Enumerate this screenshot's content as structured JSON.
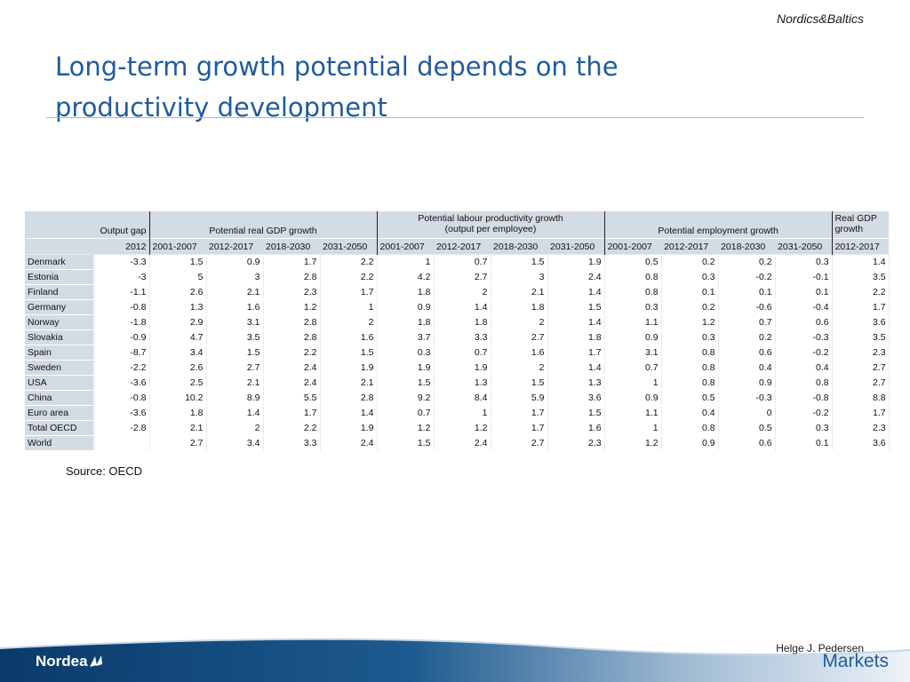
{
  "header": {
    "brand_tag": "Nordics&Baltics",
    "title_line1": "Long-term growth potential depends on the",
    "title_line2": "productivity development"
  },
  "table": {
    "group_headers": {
      "output_gap": "Output gap",
      "potential_gdp": "Potential real GDP growth",
      "labour_productivity_line1": "Potential labour productivity growth",
      "labour_productivity_line2": "(output per employee)",
      "employment": "Potential employment growth",
      "real_gdp_line1": "Real GDP",
      "real_gdp_line2": "growth"
    },
    "sub_headers": [
      "2012",
      "2001-2007",
      "2012-2017",
      "2018-2030",
      "2031-2050",
      "2001-2007",
      "2012-2017",
      "2018-2030",
      "2031-2050",
      "2001-2007",
      "2012-2017",
      "2018-2030",
      "2031-2050",
      "2012-2017"
    ],
    "rows": [
      {
        "country": "Denmark",
        "values": [
          "-3.3",
          "1.5",
          "0.9",
          "1.7",
          "2.2",
          "1",
          "0.7",
          "1.5",
          "1.9",
          "0.5",
          "0.2",
          "0.2",
          "0.3",
          "1.4"
        ]
      },
      {
        "country": "Estonia",
        "values": [
          "-3",
          "5",
          "3",
          "2.8",
          "2.2",
          "4.2",
          "2.7",
          "3",
          "2.4",
          "0.8",
          "0.3",
          "-0.2",
          "-0.1",
          "3.5"
        ]
      },
      {
        "country": "Finland",
        "values": [
          "-1.1",
          "2.6",
          "2.1",
          "2.3",
          "1.7",
          "1.8",
          "2",
          "2.1",
          "1.4",
          "0.8",
          "0.1",
          "0.1",
          "0.1",
          "2.2"
        ]
      },
      {
        "country": "Germany",
        "values": [
          "-0.8",
          "1.3",
          "1.6",
          "1.2",
          "1",
          "0.9",
          "1.4",
          "1.8",
          "1.5",
          "0.3",
          "0.2",
          "-0.6",
          "-0.4",
          "1.7"
        ]
      },
      {
        "country": "Norway",
        "values": [
          "-1.8",
          "2.9",
          "3.1",
          "2.8",
          "2",
          "1.8",
          "1.8",
          "2",
          "1.4",
          "1.1",
          "1.2",
          "0.7",
          "0.6",
          "3.6"
        ]
      },
      {
        "country": "Slovakia",
        "values": [
          "-0.9",
          "4.7",
          "3.5",
          "2.8",
          "1.6",
          "3.7",
          "3.3",
          "2.7",
          "1.8",
          "0.9",
          "0.3",
          "0.2",
          "-0.3",
          "3.5"
        ]
      },
      {
        "country": "Spain",
        "values": [
          "-8.7",
          "3.4",
          "1.5",
          "2.2",
          "1.5",
          "0.3",
          "0.7",
          "1.6",
          "1.7",
          "3.1",
          "0.8",
          "0.6",
          "-0.2",
          "2.3"
        ]
      },
      {
        "country": "Sweden",
        "values": [
          "-2.2",
          "2.6",
          "2.7",
          "2.4",
          "1.9",
          "1.9",
          "1.9",
          "2",
          "1.4",
          "0.7",
          "0.8",
          "0.4",
          "0.4",
          "2.7"
        ]
      },
      {
        "country": "USA",
        "values": [
          "-3.6",
          "2.5",
          "2.1",
          "2.4",
          "2.1",
          "1.5",
          "1.3",
          "1.5",
          "1.3",
          "1",
          "0.8",
          "0.9",
          "0.8",
          "2.7"
        ]
      },
      {
        "country": "China",
        "values": [
          "-0.8",
          "10.2",
          "8.9",
          "5.5",
          "2.8",
          "9.2",
          "8.4",
          "5.9",
          "3.6",
          "0.9",
          "0.5",
          "-0.3",
          "-0.8",
          "8.8"
        ]
      },
      {
        "country": "Euro area",
        "values": [
          "-3.6",
          "1.8",
          "1.4",
          "1.7",
          "1.4",
          "0.7",
          "1",
          "1.7",
          "1.5",
          "1.1",
          "0.4",
          "0",
          "-0.2",
          "1.7"
        ]
      },
      {
        "country": "Total OECD",
        "values": [
          "-2.8",
          "2.1",
          "2",
          "2.2",
          "1.9",
          "1.2",
          "1.2",
          "1.7",
          "1.6",
          "1",
          "0.8",
          "0.5",
          "0.3",
          "2.3"
        ]
      },
      {
        "country": "World",
        "values": [
          "",
          "2.7",
          "3.4",
          "3.3",
          "2.4",
          "1.5",
          "2.4",
          "2.7",
          "2.3",
          "1.2",
          "0.9",
          "0.6",
          "0.1",
          "3.6"
        ]
      }
    ]
  },
  "source": "Source: OECD",
  "footer": {
    "logo_text": "Nordea",
    "author": "Helge J. Pedersen",
    "markets": "Markets"
  },
  "colors": {
    "title": "#1f5c9e",
    "header_fill": "#d3dbe4",
    "footer_dark": "#0b3e6f",
    "footer_light": "#dfe8f1"
  }
}
